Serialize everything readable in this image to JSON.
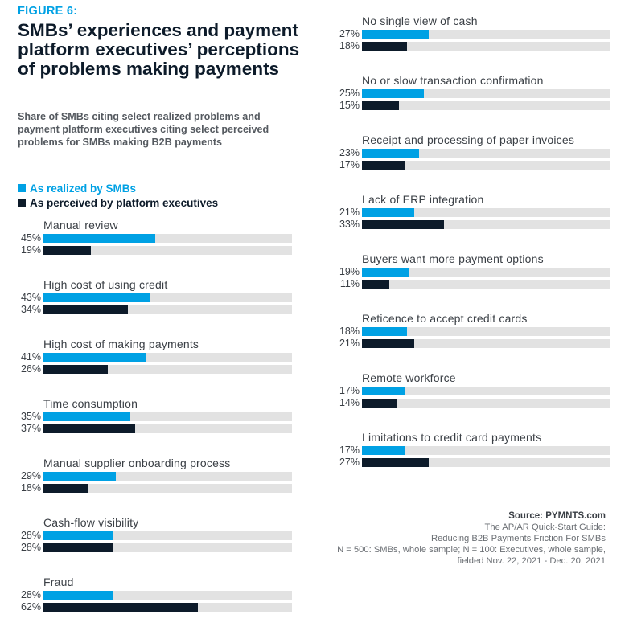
{
  "figure_label": "FIGURE 6:",
  "title": "SMBs’ experiences and payment platform executives’ perceptions of problems making payments",
  "subtitle": "Share of SMBs citing select realized problems and payment platform executives citing select perceived problems for SMBs making B2B payments",
  "legend": {
    "realized": "As realized by SMBs",
    "perceived": "As perceived by platform executives"
  },
  "colors": {
    "realized": "#00a1e4",
    "perceived": "#0d1b2a",
    "track": "#e2e2e2"
  },
  "source": {
    "head": "Source: PYMNTS.com",
    "line1": "The AP/AR Quick-Start Guide:",
    "line2": "Reducing B2B Payments Friction For SMBs",
    "line3": "N = 500: SMBs, whole sample; N = 100: Executives, whole sample,",
    "line4": "fielded Nov. 22, 2021 - Dec. 20, 2021"
  },
  "chart_data": {
    "type": "bar",
    "orientation": "horizontal",
    "title": "SMBs’ experiences and payment platform executives’ perceptions of problems making payments",
    "xlim": [
      0,
      100
    ],
    "unit": "%",
    "legend_position": "top-left",
    "categories": [
      "Manual review",
      "High cost of using credit",
      "High cost of making payments",
      "Time consumption",
      "Manual supplier onboarding process",
      "Cash-flow visibility",
      "Fraud",
      "No single view of cash",
      "No or slow transaction confirmation",
      "Receipt and processing of paper invoices",
      "Lack of ERP integration",
      "Buyers want more payment options",
      "Reticence to accept credit cards",
      "Remote workforce",
      "Limitations to credit card payments"
    ],
    "series": [
      {
        "name": "As realized by SMBs",
        "values": [
          45,
          43,
          41,
          35,
          29,
          28,
          28,
          27,
          25,
          23,
          21,
          19,
          18,
          17,
          17
        ]
      },
      {
        "name": "As perceived by platform executives",
        "values": [
          19,
          34,
          26,
          37,
          18,
          28,
          62,
          18,
          15,
          17,
          33,
          11,
          21,
          14,
          27
        ]
      }
    ]
  }
}
